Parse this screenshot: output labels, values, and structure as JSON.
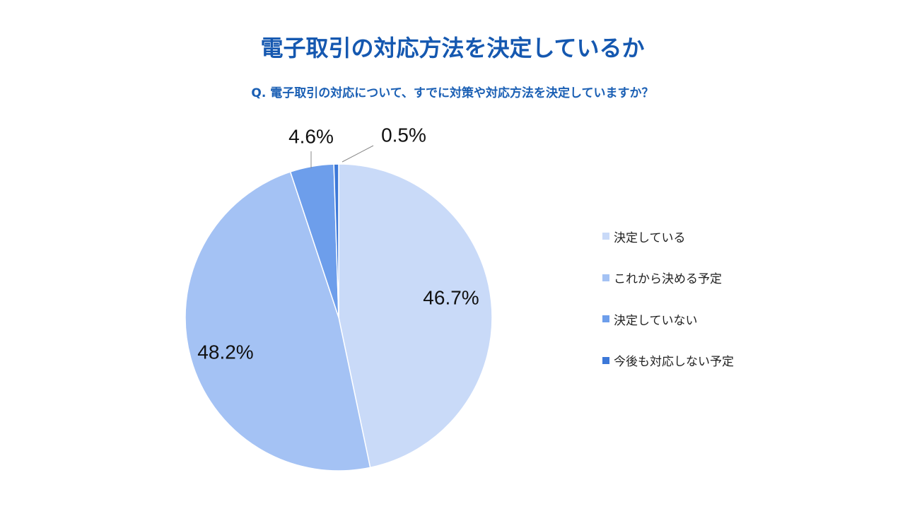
{
  "colors": {
    "title": "#1558b0",
    "subtitle": "#1a5fb4",
    "leader_line": "#888888"
  },
  "chart_data": {
    "type": "pie",
    "title": "電子取引の対応方法を決定しているか",
    "subtitle": "Q. 電子取引の対応について、すでに対策や対応方法を決定していますか？",
    "slices": [
      {
        "label": "決定している",
        "value": 46.7,
        "display": "46.7%",
        "color": "#c9daf8"
      },
      {
        "label": "これから決める予定",
        "value": 48.2,
        "display": "48.2%",
        "color": "#a4c2f4"
      },
      {
        "label": "決定していない",
        "value": 4.6,
        "display": "4.6%",
        "color": "#6d9eeb"
      },
      {
        "label": "今後も対応しない予定",
        "value": 0.5,
        "display": "0.5%",
        "color": "#3c78d8"
      }
    ],
    "start": "12 o'clock",
    "direction": "clockwise",
    "legend_position": "right"
  }
}
